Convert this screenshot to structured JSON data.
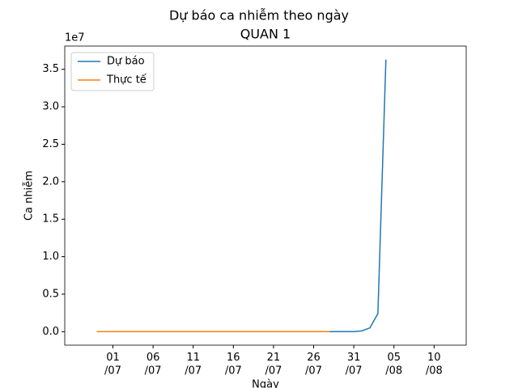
{
  "chart_data": {
    "type": "line",
    "title": "Dự báo ca nhiễm theo ngày",
    "subtitle": "QUAN 1",
    "xlabel": "Ngày",
    "ylabel": "Ca nhiễm",
    "y_offset_label": "1e7",
    "legend": "upper left",
    "grid": false,
    "xlim": [
      "25/06",
      "14/08"
    ],
    "xticks": [
      {
        "value": "01/07",
        "label": "01\n/07"
      },
      {
        "value": "06/07",
        "label": "06\n/07"
      },
      {
        "value": "11/07",
        "label": "11\n/07"
      },
      {
        "value": "16/07",
        "label": "16\n/07"
      },
      {
        "value": "21/07",
        "label": "21\n/07"
      },
      {
        "value": "26/07",
        "label": "26\n/07"
      },
      {
        "value": "31/07",
        "label": "31\n/07"
      },
      {
        "value": "05/08",
        "label": "05\n/08"
      },
      {
        "value": "10/08",
        "label": "10\n/08"
      }
    ],
    "ylim": [
      -0.18,
      3.81
    ],
    "yticks": [
      {
        "value": 0,
        "label": "0.0"
      },
      {
        "value": 0.5,
        "label": "0.5"
      },
      {
        "value": 1,
        "label": "1.0"
      },
      {
        "value": 1.5,
        "label": "1.5"
      },
      {
        "value": 2,
        "label": "2.0"
      },
      {
        "value": 2.5,
        "label": "2.5"
      },
      {
        "value": 3,
        "label": "3.0"
      },
      {
        "value": 3.5,
        "label": "3.5"
      }
    ],
    "series": [
      {
        "name": "Dự báo",
        "color": "#1f77b4",
        "x": [
          "29/06",
          "30/06",
          "01/07",
          "02/07",
          "03/07",
          "04/07",
          "05/07",
          "06/07",
          "07/07",
          "08/07",
          "09/07",
          "10/07",
          "11/07",
          "12/07",
          "13/07",
          "14/07",
          "15/07",
          "16/07",
          "17/07",
          "18/07",
          "19/07",
          "20/07",
          "21/07",
          "22/07",
          "23/07",
          "24/07",
          "25/07",
          "26/07",
          "27/07",
          "28/07",
          "29/07",
          "30/07",
          "31/07",
          "01/08",
          "02/08",
          "03/08",
          "04/08"
        ],
        "values": [
          0,
          0,
          0,
          0,
          0,
          0,
          0,
          0,
          0,
          0,
          0,
          0,
          0,
          0,
          0,
          0,
          0,
          0,
          0,
          0,
          0,
          0,
          0,
          0,
          0,
          0,
          0,
          0,
          0,
          0,
          0,
          0,
          0,
          0.01,
          0.05,
          0.24,
          3.63
        ]
      },
      {
        "name": "Thực tế",
        "color": "#ff7f0e",
        "x": [
          "29/06",
          "30/06",
          "01/07",
          "02/07",
          "03/07",
          "04/07",
          "05/07",
          "06/07",
          "07/07",
          "08/07",
          "09/07",
          "10/07",
          "11/07",
          "12/07",
          "13/07",
          "14/07",
          "15/07",
          "16/07",
          "17/07",
          "18/07",
          "19/07",
          "20/07",
          "21/07",
          "22/07",
          "23/07",
          "24/07",
          "25/07",
          "26/07",
          "27/07",
          "28/07"
        ],
        "values": [
          0,
          0,
          0,
          0,
          0,
          0,
          0,
          0,
          0,
          0,
          0,
          0,
          0,
          0,
          0,
          0,
          0,
          0,
          0,
          0,
          0,
          0,
          0,
          0,
          0,
          0,
          0,
          0,
          0,
          0
        ]
      }
    ]
  }
}
